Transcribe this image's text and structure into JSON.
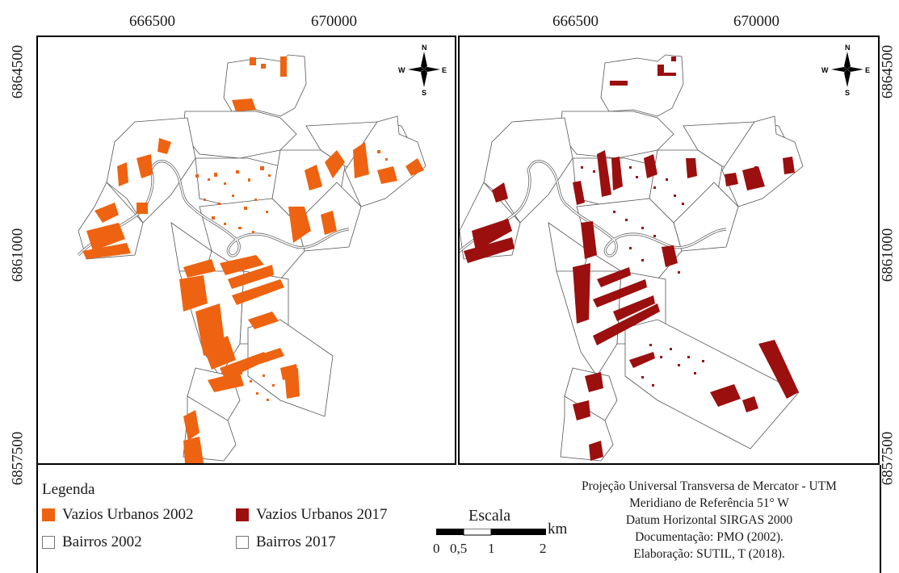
{
  "map": {
    "top_ticks": [
      "666500",
      "670000"
    ],
    "side_ticks": [
      "6864500",
      "6861000",
      "6857500"
    ],
    "panels": [
      {
        "name": "2002",
        "fill": "#ee6311"
      },
      {
        "name": "2017",
        "fill": "#9b0f0f"
      }
    ],
    "compass": {
      "n": "N",
      "s": "S",
      "e": "E",
      "w": "W"
    }
  },
  "legend": {
    "title": "Legenda",
    "items": [
      {
        "label": "Vazios Urbanos 2002",
        "color": "#ee6311"
      },
      {
        "label": "Vazios Urbanos 2017",
        "color": "#9b0f0f"
      },
      {
        "label": "Bairros 2002",
        "color": "#ffffff"
      },
      {
        "label": "Bairros 2017",
        "color": "#ffffff"
      }
    ]
  },
  "scale": {
    "title": "Escala",
    "unit": "km",
    "labels": [
      "0",
      "0,5",
      "1",
      "2"
    ]
  },
  "info": {
    "projection": "Projeção Universal Transversa de Mercator - UTM",
    "meridian": "Meridiano de Referência 51° W",
    "datum": "Datum Horizontal SIRGAS 2000",
    "documentation": "Documentação: PMO (2002).",
    "authorship": "Elaboração: SUTIL, T (2018)."
  }
}
